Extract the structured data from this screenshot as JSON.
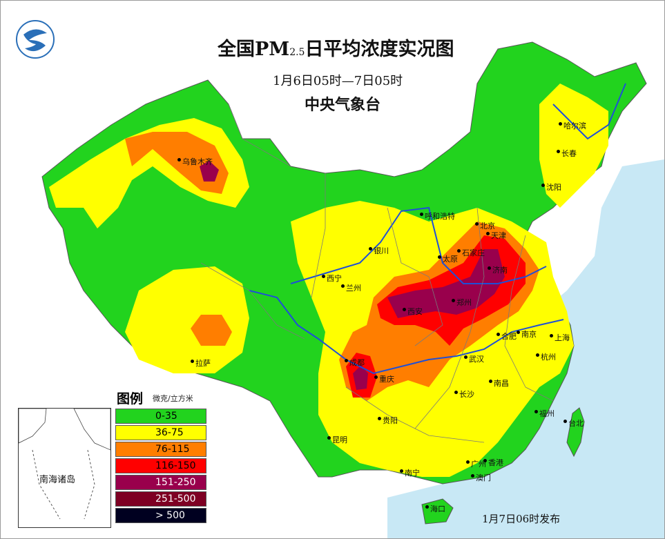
{
  "title": {
    "main_prefix": "全国PM",
    "main_sub": "2.5",
    "main_suffix": "日平均浓度实况图",
    "period": "1月6日05时—7日05时",
    "issuer": "中央气象台"
  },
  "legend": {
    "title": "图例",
    "unit": "微克/立方米",
    "items": [
      {
        "label": "0-35",
        "color": "#22d31e"
      },
      {
        "label": "36-75",
        "color": "#ffff00"
      },
      {
        "label": "76-115",
        "color": "#ff7e00"
      },
      {
        "label": "116-150",
        "color": "#ff0000"
      },
      {
        "label": "151-250",
        "color": "#99004c"
      },
      {
        "label": "251-500",
        "color": "#7e0023"
      },
      {
        "label": "> 500",
        "color": "#000020"
      }
    ]
  },
  "inset_label": "南海诸岛",
  "publish_time": "1月7日06时发布",
  "cities": [
    {
      "name": "乌鲁木齐"
    },
    {
      "name": "哈尔滨"
    },
    {
      "name": "长春"
    },
    {
      "name": "沈阳"
    },
    {
      "name": "呼和浩特"
    },
    {
      "name": "北京"
    },
    {
      "name": "天津"
    },
    {
      "name": "石家庄"
    },
    {
      "name": "太原"
    },
    {
      "name": "济南"
    },
    {
      "name": "银川"
    },
    {
      "name": "西宁"
    },
    {
      "name": "兰州"
    },
    {
      "name": "西安"
    },
    {
      "name": "郑州"
    },
    {
      "name": "合肥"
    },
    {
      "name": "南京"
    },
    {
      "name": "上海"
    },
    {
      "name": "杭州"
    },
    {
      "name": "武汉"
    },
    {
      "name": "成都"
    },
    {
      "name": "重庆"
    },
    {
      "name": "拉萨"
    },
    {
      "name": "长沙"
    },
    {
      "name": "南昌"
    },
    {
      "name": "福州"
    },
    {
      "name": "台北"
    },
    {
      "name": "贵阳"
    },
    {
      "name": "昆明"
    },
    {
      "name": "南宁"
    },
    {
      "name": "广州"
    },
    {
      "name": "香港"
    },
    {
      "name": "澳门"
    },
    {
      "name": "海口"
    }
  ],
  "colors": {
    "sea": "#c8e8f5",
    "land_outside": "#ffffff",
    "river": "#1e4fd8",
    "border": "#6a6a6a"
  }
}
